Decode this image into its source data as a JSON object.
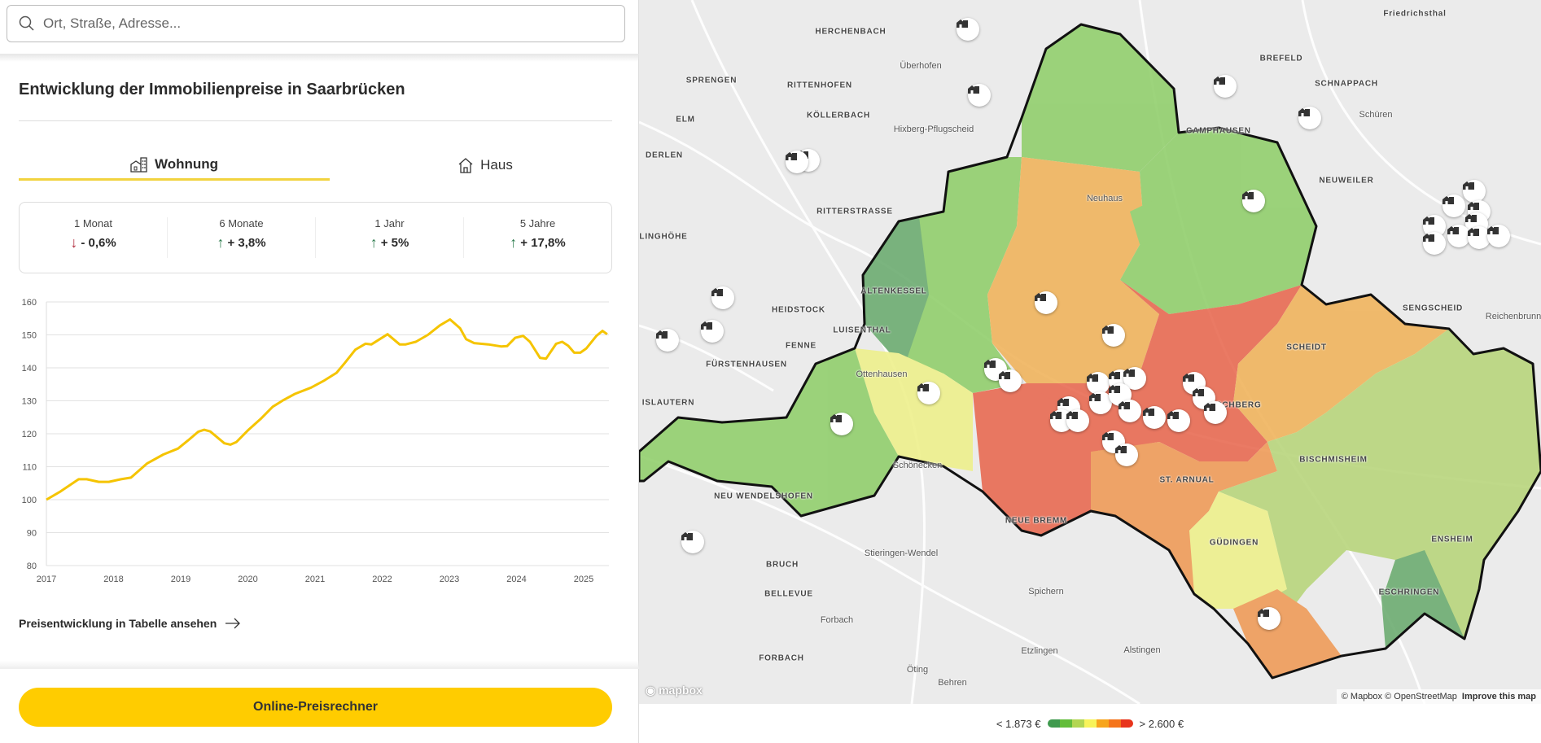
{
  "search": {
    "placeholder": "Ort, Straße, Adresse...",
    "icon": "search-icon"
  },
  "title": "Entwicklung der Immobilienpreise in Saarbrücken",
  "tabs": [
    {
      "label": "Wohnung",
      "icon": "apartment-icon",
      "active": true
    },
    {
      "label": "Haus",
      "icon": "house-icon",
      "active": false
    }
  ],
  "stats": [
    {
      "label": "1 Monat",
      "value": "- 0,6%",
      "direction": "down"
    },
    {
      "label": "6 Monate",
      "value": "+ 3,8%",
      "direction": "up"
    },
    {
      "label": "1 Jahr",
      "value": "+ 5%",
      "direction": "up"
    },
    {
      "label": "5 Jahre",
      "value": "+ 17,8%",
      "direction": "up"
    }
  ],
  "colors": {
    "accent": "#ffcc00",
    "line": "#f5c400",
    "up": "#2e7d4f",
    "down": "#b0283a"
  },
  "chart_data": {
    "type": "line",
    "xlim": [
      2017,
      2025.35
    ],
    "ylim": [
      80,
      160
    ],
    "xticks": [
      "2017",
      "2018",
      "2019",
      "2020",
      "2021",
      "2022",
      "2023",
      "2024",
      "2025"
    ],
    "yticks": [
      "80",
      "90",
      "100",
      "110",
      "120",
      "130",
      "140",
      "150",
      "160"
    ],
    "grid": true,
    "x": [
      2017.0,
      2017.21,
      2017.48,
      2017.6,
      2017.78,
      2017.93,
      2018.11,
      2018.26,
      2018.5,
      2018.74,
      2018.96,
      2019.11,
      2019.26,
      2019.35,
      2019.44,
      2019.65,
      2019.74,
      2019.83,
      2020.01,
      2020.19,
      2020.37,
      2020.52,
      2020.7,
      2020.94,
      2021.14,
      2021.32,
      2021.44,
      2021.6,
      2021.75,
      2021.84,
      2022.08,
      2022.26,
      2022.35,
      2022.5,
      2022.68,
      2022.86,
      2023.01,
      2023.16,
      2023.25,
      2023.37,
      2023.58,
      2023.77,
      2023.86,
      2023.98,
      2024.1,
      2024.2,
      2024.35,
      2024.44,
      2024.59,
      2024.68,
      2024.77,
      2024.86,
      2024.95,
      2025.04,
      2025.19,
      2025.28,
      2025.35
    ],
    "y": [
      100,
      102.5,
      106.2,
      106.2,
      105.4,
      105.4,
      106.2,
      106.7,
      111,
      113.7,
      115.5,
      118,
      120.6,
      121.2,
      120.7,
      117.1,
      116.7,
      117.5,
      121.2,
      124.5,
      128.2,
      130.1,
      132.1,
      134,
      136.2,
      138.5,
      141.4,
      145.5,
      147.3,
      147.1,
      150.2,
      147.1,
      147.1,
      147.9,
      150,
      152.9,
      154.7,
      152,
      148.7,
      147.5,
      147.1,
      146.5,
      146.6,
      149.1,
      149.7,
      147.9,
      143,
      142.8,
      147.3,
      147.9,
      146.7,
      144.6,
      144.6,
      145.9,
      149.7,
      151.2,
      150.2
    ]
  },
  "link": {
    "label": "Preisentwicklung in Tabelle ansehen",
    "icon": "arrow-right-icon"
  },
  "cta": {
    "label": "Online-Preisrechner"
  },
  "map": {
    "labels": [
      "Friedrichsthal",
      "HERCHENBACH",
      "SPRENGEN",
      "RITTENHOFEN",
      "Überhofen",
      "BREFELD",
      "SCHNAPPACH",
      "ELM",
      "KÖLLERBACH",
      "Hixberg-Pflugscheid",
      "CAMPHAUSEN",
      "Schüren",
      "DERLEN",
      "NEUWEILER",
      "Neuhaus",
      "RITTERSTRASSE",
      "LINGHÖHE",
      "ALTENKESSEL",
      "HEIDSTOCK",
      "LUISENTHAL",
      "SENGSCHEID",
      "Reichenbrunn",
      "FENNE",
      "SCHEIDT",
      "FÜRSTENHAUSEN",
      "Ottenhausen",
      "ISLAUTERN",
      "ESCHBERG",
      "BISCHMISHEIM",
      "Schönecken",
      "ST. ARNUAL",
      "NEU WENDELSHOFEN",
      "NEUE BREMM",
      "Stieringen-Wendel",
      "GÜDINGEN",
      "ENSHEIM",
      "BRUCH",
      "ESCHRINGEN",
      "BELLEVUE",
      "Spichern",
      "Forbach",
      "FORBACH",
      "Etzlingen",
      "Alstingen",
      "Öting",
      "Behren"
    ],
    "marker_icon": "property-icon",
    "logo": "mapbox",
    "attribution": "© Mapbox © OpenStreetMap",
    "improve": "Improve this map"
  },
  "legend": {
    "min": "< 1.873 €",
    "max": "> 2.600 €",
    "colors": [
      "#3f9a4e",
      "#62bd3a",
      "#b2d651",
      "#f7f35a",
      "#f7a51c",
      "#f5741a",
      "#e8341c"
    ]
  }
}
